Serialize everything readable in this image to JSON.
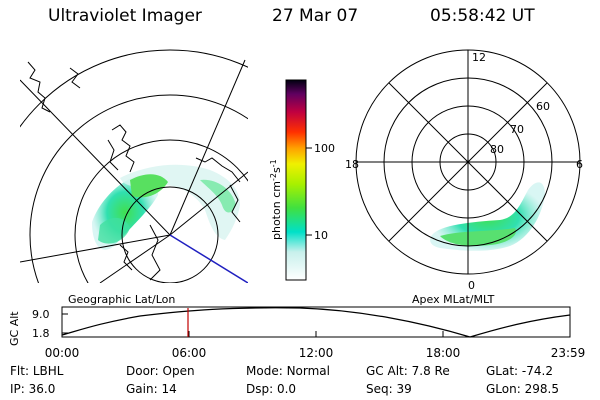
{
  "header": {
    "instrument": "Ultraviolet Imager",
    "date": "27 Mar 07",
    "time": "05:58:42 UT"
  },
  "geo_panel": {
    "caption": "Geographic Lat/Lon"
  },
  "apex_panel": {
    "caption": "Apex MLat/MLT",
    "mlt_labels": {
      "top": "12",
      "left": "18",
      "right": "6",
      "bottom": "0"
    },
    "lat_labels": [
      "60",
      "70",
      "80"
    ]
  },
  "colorbar": {
    "unit_main": "photon cm",
    "unit_sup1": "-2",
    "unit_s": "s",
    "unit_sup2": "-1",
    "ticks": [
      "100",
      "10"
    ]
  },
  "altitude_plot": {
    "ylabel": "GC Alt",
    "yticks": [
      "9.0",
      "1.8"
    ],
    "xticks": [
      "00:00",
      "06:00",
      "12:00",
      "18:00",
      "23:59"
    ],
    "marker_color": "#c00000"
  },
  "footer": {
    "row1": [
      {
        "label": "Flt:",
        "value": "LBHL"
      },
      {
        "label": "Door:",
        "value": "Open"
      },
      {
        "label": "Mode:",
        "value": "Normal"
      },
      {
        "label": "GC Alt:",
        "value": "7.8 Re"
      },
      {
        "label": "GLat:",
        "value": "-74.2"
      }
    ],
    "row2": [
      {
        "label": "IP:",
        "value": "36.0"
      },
      {
        "label": "Gain:",
        "value": "14"
      },
      {
        "label": "Dsp:",
        "value": "0.0"
      },
      {
        "label": "Seq:",
        "value": "39"
      },
      {
        "label": "GLon:",
        "value": "298.5"
      }
    ]
  }
}
